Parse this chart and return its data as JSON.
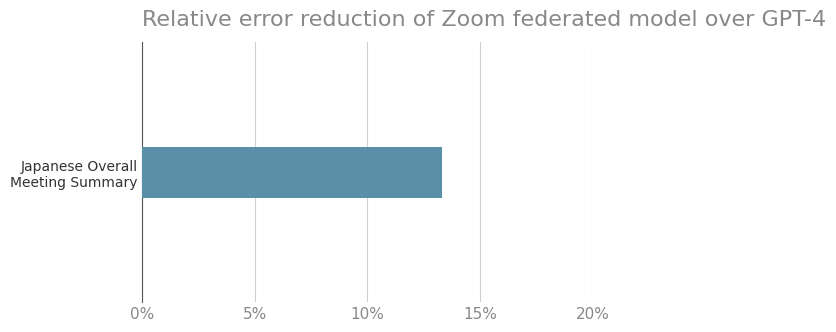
{
  "title": "Relative error reduction of Zoom federated model over GPT-4",
  "categories": [
    "Japanese Overall\nMeeting Summary"
  ],
  "values": [
    0.133
  ],
  "bar_color": "#5b8fa8",
  "xlim": [
    0,
    0.2
  ],
  "xticks": [
    0.0,
    0.05,
    0.1,
    0.15,
    0.2
  ],
  "xtick_labels": [
    "0%",
    "5%",
    "10%",
    "15%",
    "20%"
  ],
  "background_color": "#ffffff",
  "title_fontsize": 16,
  "tick_fontsize": 11,
  "label_fontsize": 10,
  "title_color": "#888888",
  "tick_color": "#888888",
  "grid_color": "#d0d0d0",
  "bar_height": 0.35
}
